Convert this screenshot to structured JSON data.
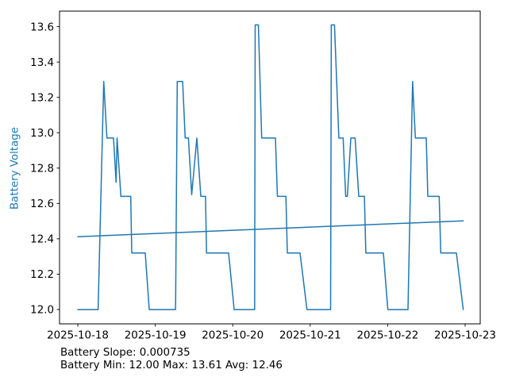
{
  "colors": {
    "background": "#ffffff",
    "accent": "#1f77b4",
    "axis": "#000000",
    "text": "#000000"
  },
  "chart_data": {
    "type": "line",
    "title": "",
    "xlabel": "",
    "ylabel": "Battery Voltage",
    "x_axis_unit": "days since 2025-10-18",
    "xlim": [
      -0.236,
      5.195
    ],
    "ylim": [
      11.919,
      13.688
    ],
    "grid": false,
    "legend": null,
    "x_ticks": [
      {
        "pos": 0,
        "label": "2025-10-18"
      },
      {
        "pos": 1,
        "label": "2025-10-19"
      },
      {
        "pos": 2,
        "label": "2025-10-20"
      },
      {
        "pos": 3,
        "label": "2025-10-21"
      },
      {
        "pos": 4,
        "label": "2025-10-22"
      },
      {
        "pos": 5,
        "label": "2025-10-23"
      }
    ],
    "y_ticks": [
      {
        "pos": 12.0,
        "label": "12.0"
      },
      {
        "pos": 12.2,
        "label": "12.2"
      },
      {
        "pos": 12.4,
        "label": "12.4"
      },
      {
        "pos": 12.6,
        "label": "12.6"
      },
      {
        "pos": 12.8,
        "label": "12.8"
      },
      {
        "pos": 13.0,
        "label": "13.0"
      },
      {
        "pos": 13.2,
        "label": "13.2"
      },
      {
        "pos": 13.4,
        "label": "13.4"
      },
      {
        "pos": 13.6,
        "label": "13.6"
      }
    ],
    "series": [
      {
        "id": "battery-voltage-line",
        "name": "Battery Voltage",
        "color": "#1f77b4",
        "width": 1.5,
        "points": [
          [
            0.0,
            12.0
          ],
          [
            0.262,
            12.0
          ],
          [
            0.335,
            13.29
          ],
          [
            0.376,
            12.97
          ],
          [
            0.461,
            12.97
          ],
          [
            0.495,
            12.72
          ],
          [
            0.507,
            12.97
          ],
          [
            0.556,
            12.64
          ],
          [
            0.683,
            12.64
          ],
          [
            0.697,
            12.32
          ],
          [
            0.871,
            12.32
          ],
          [
            0.922,
            12.0
          ],
          [
            1.262,
            12.0
          ],
          [
            1.284,
            13.29
          ],
          [
            1.353,
            13.29
          ],
          [
            1.386,
            12.97
          ],
          [
            1.428,
            12.97
          ],
          [
            1.47,
            12.65
          ],
          [
            1.537,
            12.97
          ],
          [
            1.588,
            12.64
          ],
          [
            1.648,
            12.64
          ],
          [
            1.662,
            12.32
          ],
          [
            1.947,
            12.32
          ],
          [
            2.018,
            12.0
          ],
          [
            2.283,
            12.0
          ],
          [
            2.29,
            13.61
          ],
          [
            2.331,
            13.61
          ],
          [
            2.374,
            12.97
          ],
          [
            2.551,
            12.97
          ],
          [
            2.577,
            12.64
          ],
          [
            2.687,
            12.64
          ],
          [
            2.705,
            12.32
          ],
          [
            2.869,
            12.32
          ],
          [
            2.958,
            12.0
          ],
          [
            3.263,
            12.0
          ],
          [
            3.273,
            13.61
          ],
          [
            3.314,
            13.61
          ],
          [
            3.37,
            12.97
          ],
          [
            3.425,
            12.97
          ],
          [
            3.458,
            12.64
          ],
          [
            3.48,
            12.64
          ],
          [
            3.525,
            12.97
          ],
          [
            3.58,
            12.97
          ],
          [
            3.627,
            12.64
          ],
          [
            3.7,
            12.64
          ],
          [
            3.718,
            12.32
          ],
          [
            3.945,
            12.32
          ],
          [
            4.002,
            12.0
          ],
          [
            4.262,
            12.0
          ],
          [
            4.322,
            13.29
          ],
          [
            4.358,
            12.97
          ],
          [
            4.498,
            12.97
          ],
          [
            4.519,
            12.64
          ],
          [
            4.665,
            12.64
          ],
          [
            4.686,
            12.32
          ],
          [
            4.888,
            12.32
          ],
          [
            4.976,
            12.0
          ]
        ]
      },
      {
        "id": "battery-trend-line",
        "name": "Battery Voltage Trend",
        "color": "#1f77b4",
        "width": 1.5,
        "points": [
          [
            0.0,
            12.412
          ],
          [
            4.976,
            12.502
          ]
        ]
      }
    ],
    "annotations": [
      "Battery Slope: 0.000735",
      "Battery Min: 12.00 Max: 13.61 Avg: 12.46"
    ],
    "stats": {
      "slope": 0.000735,
      "min": 12.0,
      "max": 13.61,
      "avg": 12.46
    }
  }
}
